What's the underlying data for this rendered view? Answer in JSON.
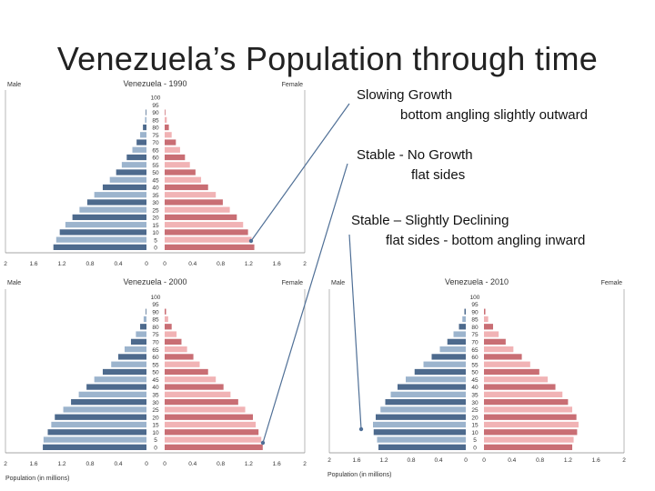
{
  "slide": {
    "title": "Venezuela’s Population through time"
  },
  "callouts": [
    {
      "line1": "Slowing Growth",
      "line2": "bottom angling slightly outward"
    },
    {
      "line1": "Stable - No Growth",
      "line2": "flat sides"
    },
    {
      "line1": "Stable – Slightly Declining",
      "line2": "flat sides - bottom angling inward"
    }
  ],
  "colors": {
    "male_dark": "#4d6a8d",
    "male_light": "#9cb4cd",
    "female_dark": "#c96e74",
    "female_light": "#f1b3b5",
    "arrow": "#4f6f96",
    "axis": "#888888"
  },
  "chart_data": [
    {
      "type": "population-pyramid",
      "title": "Venezuela - 1990",
      "left_label": "Male",
      "right_label": "Female",
      "age_groups": [
        "0",
        "5",
        "10",
        "15",
        "20",
        "25",
        "30",
        "35",
        "40",
        "45",
        "50",
        "55",
        "60",
        "65",
        "70",
        "75",
        "80",
        "85",
        "90",
        "95",
        "100"
      ],
      "male": [
        1.32,
        1.28,
        1.23,
        1.15,
        1.05,
        0.95,
        0.84,
        0.74,
        0.62,
        0.52,
        0.43,
        0.35,
        0.28,
        0.2,
        0.14,
        0.09,
        0.05,
        0.02,
        0.01,
        0,
        0
      ],
      "female": [
        1.28,
        1.24,
        1.19,
        1.12,
        1.03,
        0.93,
        0.83,
        0.73,
        0.62,
        0.52,
        0.44,
        0.36,
        0.29,
        0.22,
        0.16,
        0.1,
        0.06,
        0.03,
        0.01,
        0,
        0
      ],
      "x_ticks": [
        "2",
        "1.6",
        "1.2",
        "0.8",
        "0.4",
        "0",
        "0",
        "0.4",
        "0.8",
        "1.2",
        "1.6",
        "2"
      ],
      "xlim": [
        0,
        2
      ],
      "xlabel": ""
    },
    {
      "type": "population-pyramid",
      "title": "Venezuela - 2000",
      "left_label": "Male",
      "right_label": "Female",
      "age_groups": [
        "0",
        "5",
        "10",
        "15",
        "20",
        "25",
        "30",
        "35",
        "40",
        "45",
        "50",
        "55",
        "60",
        "65",
        "70",
        "75",
        "80",
        "85",
        "90",
        "95",
        "100"
      ],
      "male": [
        1.47,
        1.46,
        1.4,
        1.35,
        1.3,
        1.18,
        1.07,
        0.96,
        0.85,
        0.74,
        0.62,
        0.5,
        0.4,
        0.31,
        0.22,
        0.15,
        0.09,
        0.04,
        0.01,
        0,
        0
      ],
      "female": [
        1.4,
        1.38,
        1.34,
        1.3,
        1.26,
        1.15,
        1.05,
        0.94,
        0.84,
        0.73,
        0.62,
        0.5,
        0.41,
        0.32,
        0.24,
        0.17,
        0.1,
        0.05,
        0.02,
        0,
        0
      ],
      "x_ticks": [
        "2",
        "1.6",
        "1.2",
        "0.8",
        "0.4",
        "0",
        "0",
        "0.4",
        "0.8",
        "1.2",
        "1.6",
        "2"
      ],
      "xlim": [
        0,
        2
      ],
      "xlabel": "Population (in millions)"
    },
    {
      "type": "population-pyramid",
      "title": "Venezuela - 2010",
      "left_label": "Male",
      "right_label": "Female",
      "age_groups": [
        "0",
        "5",
        "10",
        "15",
        "20",
        "25",
        "30",
        "35",
        "40",
        "45",
        "50",
        "55",
        "60",
        "65",
        "70",
        "75",
        "80",
        "85",
        "90",
        "95",
        "100"
      ],
      "male": [
        1.28,
        1.3,
        1.35,
        1.36,
        1.32,
        1.25,
        1.18,
        1.1,
        1.0,
        0.88,
        0.75,
        0.62,
        0.5,
        0.38,
        0.27,
        0.18,
        0.1,
        0.05,
        0.02,
        0,
        0
      ],
      "female": [
        1.26,
        1.28,
        1.33,
        1.35,
        1.32,
        1.26,
        1.2,
        1.12,
        1.02,
        0.91,
        0.79,
        0.66,
        0.54,
        0.42,
        0.31,
        0.21,
        0.13,
        0.06,
        0.02,
        0,
        0
      ],
      "x_ticks": [
        "2",
        "1.6",
        "1.2",
        "0.8",
        "0.4",
        "0",
        "0",
        "0.4",
        "0.8",
        "1.2",
        "1.6",
        "2"
      ],
      "xlim": [
        0,
        2
      ],
      "xlabel": "Population (in millions)"
    }
  ]
}
